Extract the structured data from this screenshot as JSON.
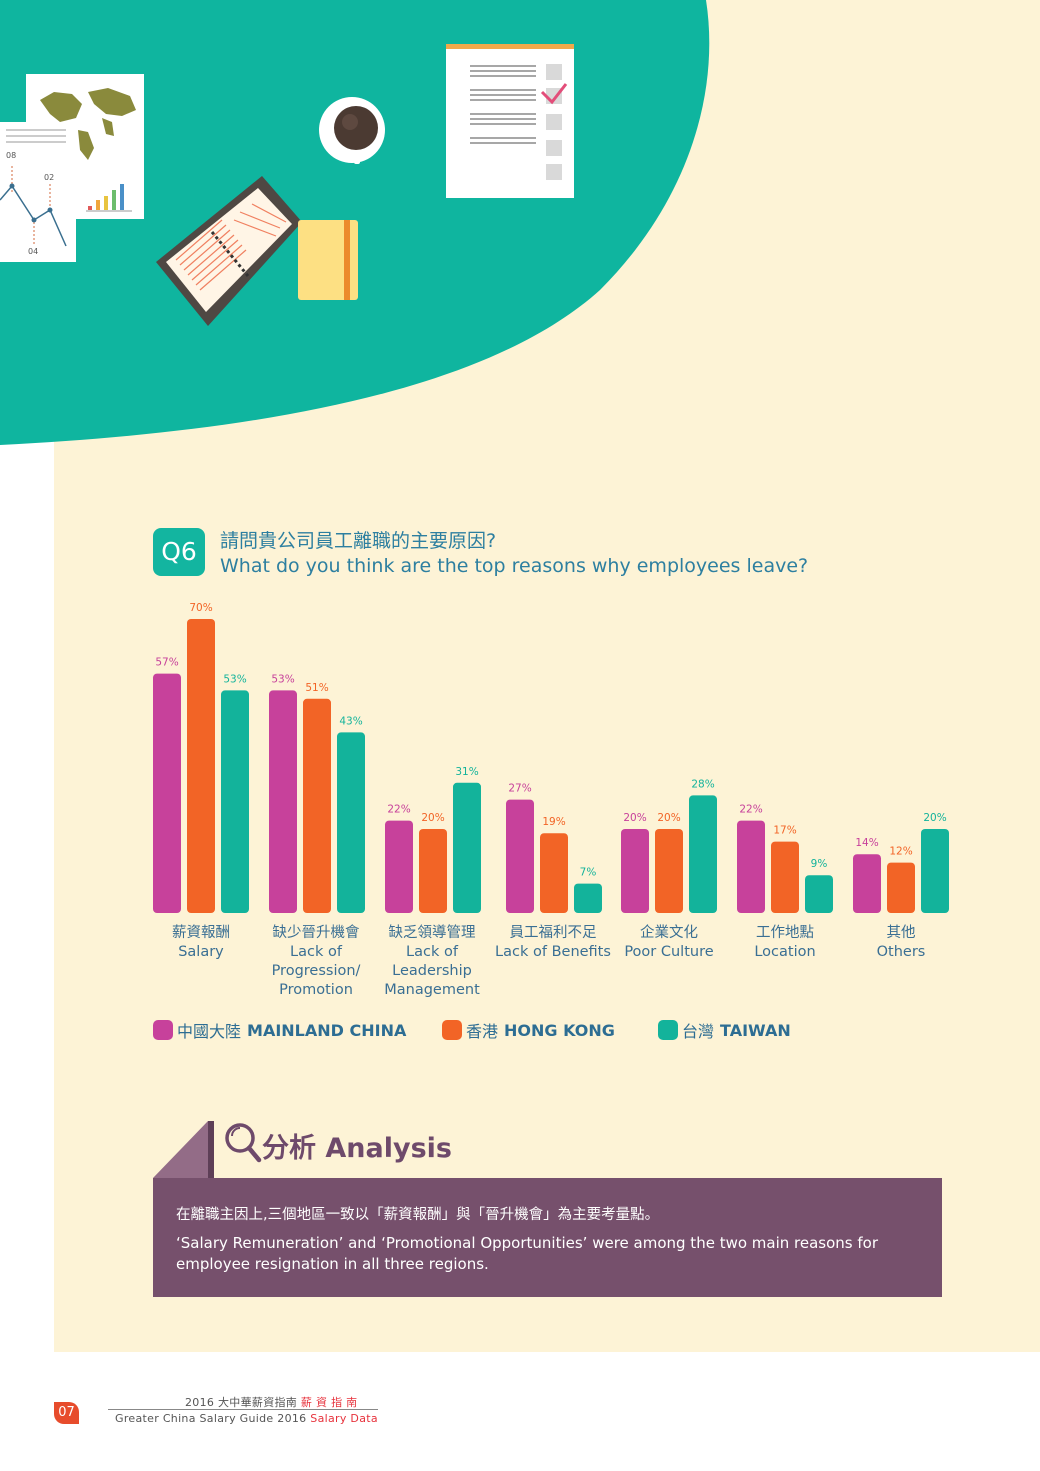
{
  "colors": {
    "teal_header": "#0fb59f",
    "cream": "#fdf3d6",
    "mainland": "#c7419b",
    "hongkong": "#f26426",
    "taiwan": "#13b39b",
    "analysis": "#76506c",
    "text_blue": "#2d7fa0"
  },
  "question": {
    "badge": "Q6",
    "zh": "請問貴公司員工離職的主要原因?",
    "en": "What do you think are the top reasons why employees leave?"
  },
  "chart_data": {
    "type": "bar",
    "categories": [
      "Salary",
      "Lack of Progression/ Promotion",
      "Lack of Leadership Management",
      "Lack of Benefits",
      "Poor Culture",
      "Location",
      "Others"
    ],
    "category_labels": [
      {
        "zh": "薪資報酬",
        "en": "Salary"
      },
      {
        "zh": "缺少晉升機會",
        "en": "Lack of\nProgression/\nPromotion"
      },
      {
        "zh": "缺乏領導管理",
        "en": "Lack of\nLeadership\nManagement"
      },
      {
        "zh": "員工福利不足",
        "en": "Lack of Benefits"
      },
      {
        "zh": "企業文化",
        "en": "Poor Culture"
      },
      {
        "zh": "工作地點",
        "en": "Location"
      },
      {
        "zh": "其他",
        "en": "Others"
      }
    ],
    "series": [
      {
        "name": "中國大陸 MAINLAND CHINA",
        "zh": "中國大陸",
        "en": "MAINLAND CHINA",
        "color": "#c7419b",
        "values": [
          57,
          53,
          22,
          27,
          20,
          22,
          14
        ]
      },
      {
        "name": "香港 HONG KONG",
        "zh": "香港",
        "en": "HONG KONG",
        "color": "#f26426",
        "values": [
          70,
          51,
          20,
          19,
          20,
          17,
          12
        ]
      },
      {
        "name": "台灣 TAIWAN",
        "zh": "台灣",
        "en": "TAIWAN",
        "color": "#13b39b",
        "values": [
          53,
          43,
          31,
          7,
          28,
          9,
          20
        ]
      }
    ],
    "value_suffix": "%",
    "ylim": [
      0,
      70
    ],
    "grid": false,
    "legend_position": "bottom"
  },
  "analysis": {
    "title": "分析 Analysis",
    "zh": "在離職主因上,三個地區一致以「薪資報酬」與「晉升機會」為主要考量點。",
    "en": "‘Salary Remuneration’ and ‘Promotional Opportunities’ were among the two main reasons for employee resignation in all three regions."
  },
  "illustration": {
    "chart_ticks": [
      "08",
      "02",
      "04"
    ]
  },
  "footer": {
    "page": "07",
    "line1_prefix": "2016 大中華薪資指南",
    "line1_red": "薪 資 指 南",
    "line2_prefix": "Greater China Salary Guide 2016",
    "line2_red": "Salary Data"
  }
}
